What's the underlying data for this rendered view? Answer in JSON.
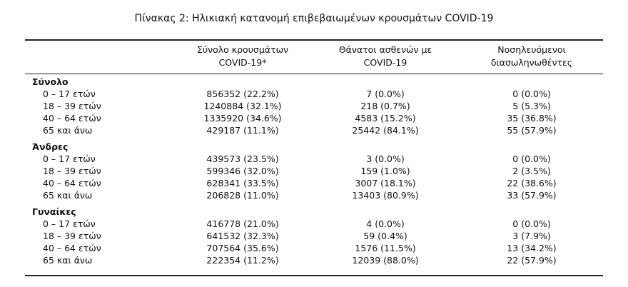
{
  "title": "Πίνακας 2: Ηλικιακή κατανομή επιβεβαιωμένων κρουσμάτων COVID-19",
  "header": {
    "columns": [
      [
        "Σύνολο κρουσμάτων",
        "COVID-19*"
      ],
      [
        "Θάνατοι ασθενών με",
        "COVID-19"
      ],
      [
        "Νοσηλευόμενοι",
        "διασωληνωθέντες"
      ]
    ]
  },
  "sections": [
    {
      "name": "Σύνολο",
      "rows": [
        [
          "0 – 17 ετών",
          "856352 (22.2%)",
          "7 (0.0%)",
          "0 (0.0%)"
        ],
        [
          "18 – 39 ετών",
          "1240884 (32.1%)",
          "218 (0.7%)",
          "5 (5.3%)"
        ],
        [
          "40 – 64 ετών",
          "1335920 (34.6%)",
          "4583 (15.2%)",
          "35 (36.8%)"
        ],
        [
          "65 και άνω",
          "429187 (11.1%)",
          "25442 (84.1%)",
          "55 (57.9%)"
        ]
      ]
    },
    {
      "name": "Άνδρες",
      "rows": [
        [
          "0 – 17 ετών",
          "439573 (23.5%)",
          "3 (0.0%)",
          "0 (0.0%)"
        ],
        [
          "18 – 39 ετών",
          "599346 (32.0%)",
          "159 (1.0%)",
          "2 (3.5%)"
        ],
        [
          "40 – 64 ετών",
          "628341 (33.5%)",
          "3007 (18.1%)",
          "22 (38.6%)"
        ],
        [
          "65 και άνω",
          "206828 (11.0%)",
          "13403 (80.9%)",
          "33 (57.9%)"
        ]
      ]
    },
    {
      "name": "Γυναίκες",
      "rows": [
        [
          "0 – 17 ετών",
          "416778 (21.0%)",
          "4 (0.0%)",
          "0 (0.0%)"
        ],
        [
          "18 – 39 ετών",
          "641532 (32.3%)",
          "59 (0.4%)",
          "3 (7.9%)"
        ],
        [
          "40 – 64 ετών",
          "707564 (35.6%)",
          "1576 (11.5%)",
          "13 (34.2%)"
        ],
        [
          "65 και άνω",
          "222354 (11.2%)",
          "12039 (88.0%)",
          "22 (57.9%)"
        ]
      ]
    }
  ]
}
